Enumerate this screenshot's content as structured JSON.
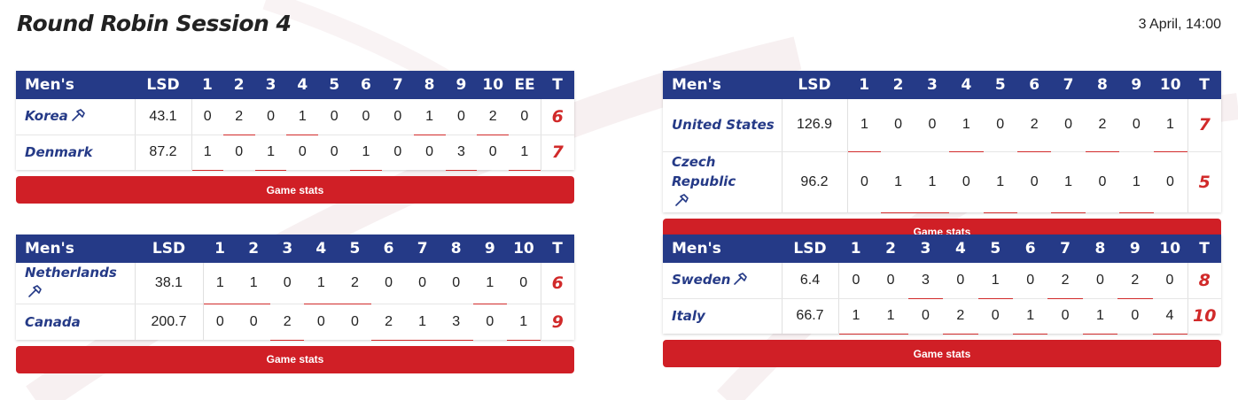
{
  "page": {
    "title": "Round Robin Session 4",
    "date": "3 April, 14:00"
  },
  "colors": {
    "header": "#253a87",
    "accent": "#d01f26",
    "total": "#d12a2a"
  },
  "games": [
    {
      "category": "Men's",
      "lsd_label": "LSD",
      "total_label": "T",
      "end_labels": [
        "1",
        "2",
        "3",
        "4",
        "5",
        "6",
        "7",
        "8",
        "9",
        "10",
        "EE"
      ],
      "teams": [
        {
          "name": "Korea",
          "hammer": true,
          "lsd": "43.1",
          "ends": [
            "0",
            "2",
            "0",
            "1",
            "0",
            "0",
            "0",
            "1",
            "0",
            "2",
            "0"
          ],
          "total": "6"
        },
        {
          "name": "Denmark",
          "hammer": false,
          "lsd": "87.2",
          "ends": [
            "1",
            "0",
            "1",
            "0",
            "0",
            "1",
            "0",
            "0",
            "3",
            "0",
            "1"
          ],
          "total": "7"
        }
      ],
      "stats_label": "Game stats"
    },
    {
      "category": "Men's",
      "lsd_label": "LSD",
      "total_label": "T",
      "end_labels": [
        "1",
        "2",
        "3",
        "4",
        "5",
        "6",
        "7",
        "8",
        "9",
        "10"
      ],
      "teams": [
        {
          "name": "United States",
          "hammer": false,
          "lsd": "126.9",
          "ends": [
            "1",
            "0",
            "0",
            "1",
            "0",
            "2",
            "0",
            "2",
            "0",
            "1"
          ],
          "total": "7"
        },
        {
          "name": "Czech Republic",
          "hammer": true,
          "lsd": "96.2",
          "ends": [
            "0",
            "1",
            "1",
            "0",
            "1",
            "0",
            "1",
            "0",
            "1",
            "0"
          ],
          "total": "5"
        }
      ],
      "stats_label": "Game stats"
    },
    {
      "category": "Men's",
      "lsd_label": "LSD",
      "total_label": "T",
      "end_labels": [
        "1",
        "2",
        "3",
        "4",
        "5",
        "6",
        "7",
        "8",
        "9",
        "10"
      ],
      "teams": [
        {
          "name": "Netherlands",
          "hammer": true,
          "lsd": "38.1",
          "ends": [
            "1",
            "1",
            "0",
            "1",
            "2",
            "0",
            "0",
            "0",
            "1",
            "0"
          ],
          "total": "6"
        },
        {
          "name": "Canada",
          "hammer": false,
          "lsd": "200.7",
          "ends": [
            "0",
            "0",
            "2",
            "0",
            "0",
            "2",
            "1",
            "3",
            "0",
            "1"
          ],
          "total": "9"
        }
      ],
      "stats_label": "Game stats"
    },
    {
      "category": "Men's",
      "lsd_label": "LSD",
      "total_label": "T",
      "end_labels": [
        "1",
        "2",
        "3",
        "4",
        "5",
        "6",
        "7",
        "8",
        "9",
        "10"
      ],
      "teams": [
        {
          "name": "Sweden",
          "hammer": true,
          "lsd": "6.4",
          "ends": [
            "0",
            "0",
            "3",
            "0",
            "1",
            "0",
            "2",
            "0",
            "2",
            "0"
          ],
          "total": "8"
        },
        {
          "name": "Italy",
          "hammer": false,
          "lsd": "66.7",
          "ends": [
            "1",
            "1",
            "0",
            "2",
            "0",
            "1",
            "0",
            "1",
            "0",
            "4"
          ],
          "total": "10"
        }
      ],
      "stats_label": "Game stats"
    }
  ]
}
